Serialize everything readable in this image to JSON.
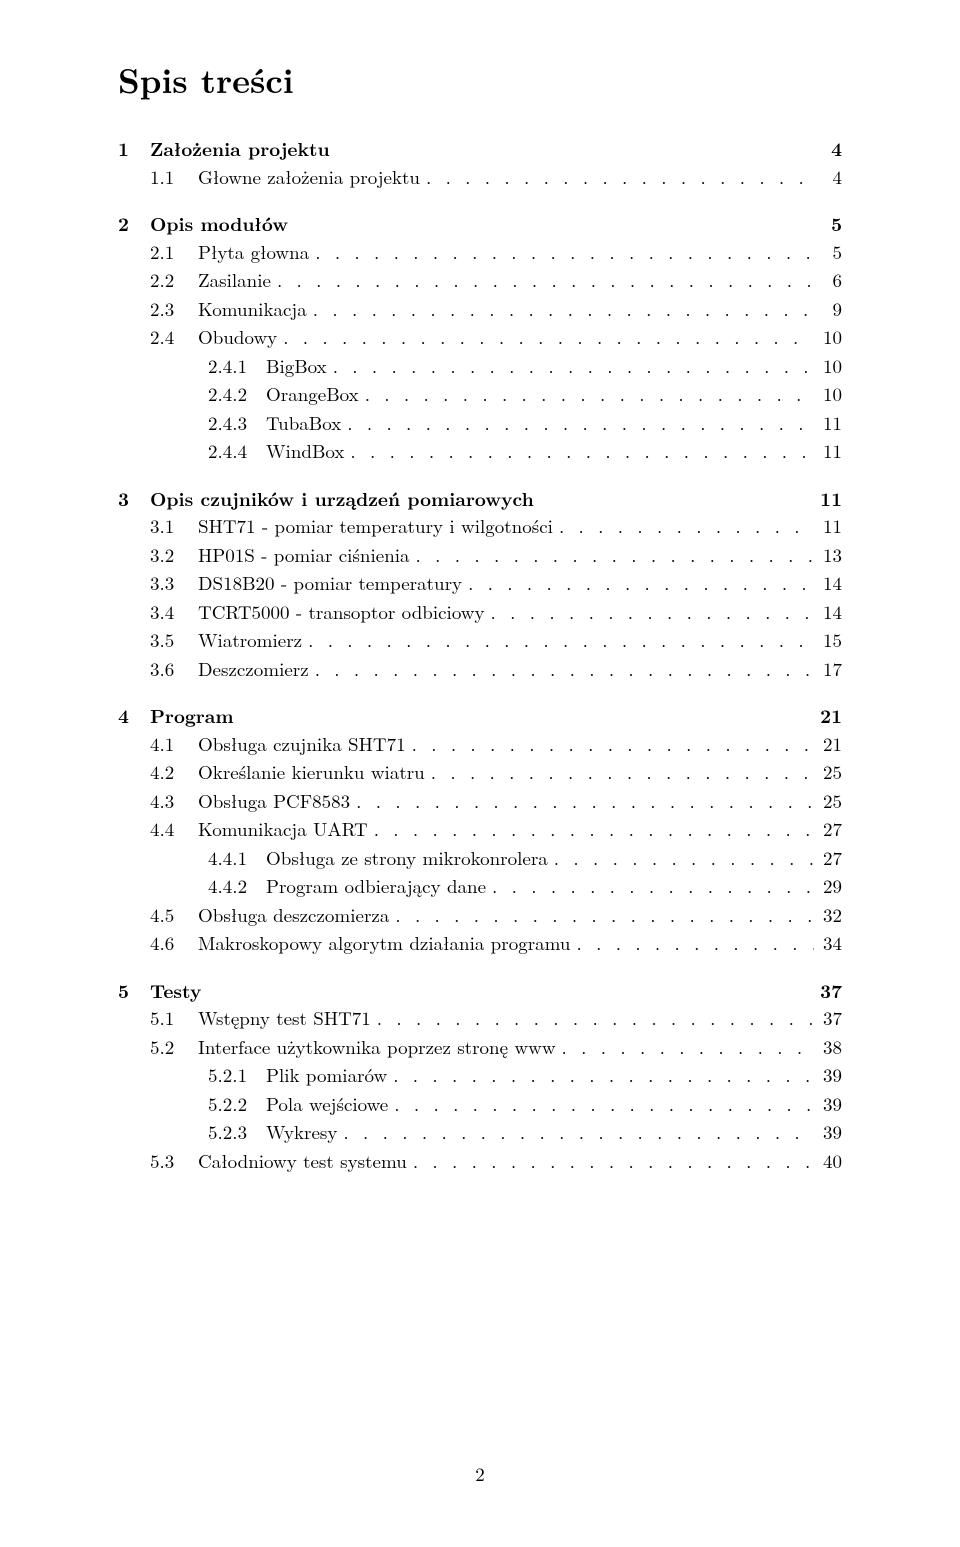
{
  "title": "Spis treści",
  "dots": ". . . . . . . . . . . . . . . . . . . . . . . . . . . . . . . . . . . . . . . . . . . . . . . . . . . . . . . . . . . . . . . . . . . . . . . . . . . . . . . . . . . . . . . . . .",
  "pageNumber": "2",
  "toc": [
    {
      "level": 1,
      "num": "1",
      "label": "Założenia projektu",
      "page": "4",
      "bold": true,
      "dots": false
    },
    {
      "level": 2,
      "num": "1.1",
      "label": "Głowne założenia projektu",
      "page": "4",
      "bold": false,
      "dots": true
    },
    {
      "level": 1,
      "num": "2",
      "label": "Opis modułów",
      "page": "5",
      "bold": true,
      "dots": false
    },
    {
      "level": 2,
      "num": "2.1",
      "label": "Płyta głowna",
      "page": "5",
      "bold": false,
      "dots": true
    },
    {
      "level": 2,
      "num": "2.2",
      "label": "Zasilanie",
      "page": "6",
      "bold": false,
      "dots": true
    },
    {
      "level": 2,
      "num": "2.3",
      "label": "Komunikacja",
      "page": "9",
      "bold": false,
      "dots": true
    },
    {
      "level": 2,
      "num": "2.4",
      "label": "Obudowy",
      "page": "10",
      "bold": false,
      "dots": true
    },
    {
      "level": 3,
      "num": "2.4.1",
      "label": "BigBox",
      "page": "10",
      "bold": false,
      "dots": true
    },
    {
      "level": 3,
      "num": "2.4.2",
      "label": "OrangeBox",
      "page": "10",
      "bold": false,
      "dots": true
    },
    {
      "level": 3,
      "num": "2.4.3",
      "label": "TubaBox",
      "page": "11",
      "bold": false,
      "dots": true
    },
    {
      "level": 3,
      "num": "2.4.4",
      "label": "WindBox",
      "page": "11",
      "bold": false,
      "dots": true
    },
    {
      "level": 1,
      "num": "3",
      "label": "Opis czujników i urządzeń pomiarowych",
      "page": "11",
      "bold": true,
      "dots": false
    },
    {
      "level": 2,
      "num": "3.1",
      "label": "SHT71 - pomiar temperatury i wilgotności",
      "page": "11",
      "bold": false,
      "dots": true
    },
    {
      "level": 2,
      "num": "3.2",
      "label": "HP01S - pomiar ciśnienia",
      "page": "13",
      "bold": false,
      "dots": true
    },
    {
      "level": 2,
      "num": "3.3",
      "label": "DS18B20 - pomiar temperatury",
      "page": "14",
      "bold": false,
      "dots": true
    },
    {
      "level": 2,
      "num": "3.4",
      "label": "TCRT5000 - transoptor odbiciowy",
      "page": "14",
      "bold": false,
      "dots": true
    },
    {
      "level": 2,
      "num": "3.5",
      "label": "Wiatromierz",
      "page": "15",
      "bold": false,
      "dots": true
    },
    {
      "level": 2,
      "num": "3.6",
      "label": "Deszczomierz",
      "page": "17",
      "bold": false,
      "dots": true
    },
    {
      "level": 1,
      "num": "4",
      "label": "Program",
      "page": "21",
      "bold": true,
      "dots": false
    },
    {
      "level": 2,
      "num": "4.1",
      "label": "Obsługa czujnika SHT71",
      "page": "21",
      "bold": false,
      "dots": true
    },
    {
      "level": 2,
      "num": "4.2",
      "label": "Określanie kierunku wiatru",
      "page": "25",
      "bold": false,
      "dots": true
    },
    {
      "level": 2,
      "num": "4.3",
      "label": "Obsługa PCF8583",
      "page": "25",
      "bold": false,
      "dots": true
    },
    {
      "level": 2,
      "num": "4.4",
      "label": "Komunikacja UART",
      "page": "27",
      "bold": false,
      "dots": true
    },
    {
      "level": 3,
      "num": "4.4.1",
      "label": "Obsługa ze strony mikrokonrolera",
      "page": "27",
      "bold": false,
      "dots": true
    },
    {
      "level": 3,
      "num": "4.4.2",
      "label": "Program odbierający dane",
      "page": "29",
      "bold": false,
      "dots": true
    },
    {
      "level": 2,
      "num": "4.5",
      "label": "Obsługa deszczomierza",
      "page": "32",
      "bold": false,
      "dots": true
    },
    {
      "level": 2,
      "num": "4.6",
      "label": "Makroskopowy algorytm działania programu",
      "page": "34",
      "bold": false,
      "dots": true
    },
    {
      "level": 1,
      "num": "5",
      "label": "Testy",
      "page": "37",
      "bold": true,
      "dots": false
    },
    {
      "level": 2,
      "num": "5.1",
      "label": "Wstępny test SHT71",
      "page": "37",
      "bold": false,
      "dots": true
    },
    {
      "level": 2,
      "num": "5.2",
      "label": "Interface użytkownika poprzez stronę www",
      "page": "38",
      "bold": false,
      "dots": true
    },
    {
      "level": 3,
      "num": "5.2.1",
      "label": "Plik pomiarów",
      "page": "39",
      "bold": false,
      "dots": true
    },
    {
      "level": 3,
      "num": "5.2.2",
      "label": "Pola wejściowe",
      "page": "39",
      "bold": false,
      "dots": true
    },
    {
      "level": 3,
      "num": "5.2.3",
      "label": "Wykresy",
      "page": "39",
      "bold": false,
      "dots": true
    },
    {
      "level": 2,
      "num": "5.3",
      "label": "Całodniowy test systemu",
      "page": "40",
      "bold": false,
      "dots": true
    }
  ]
}
